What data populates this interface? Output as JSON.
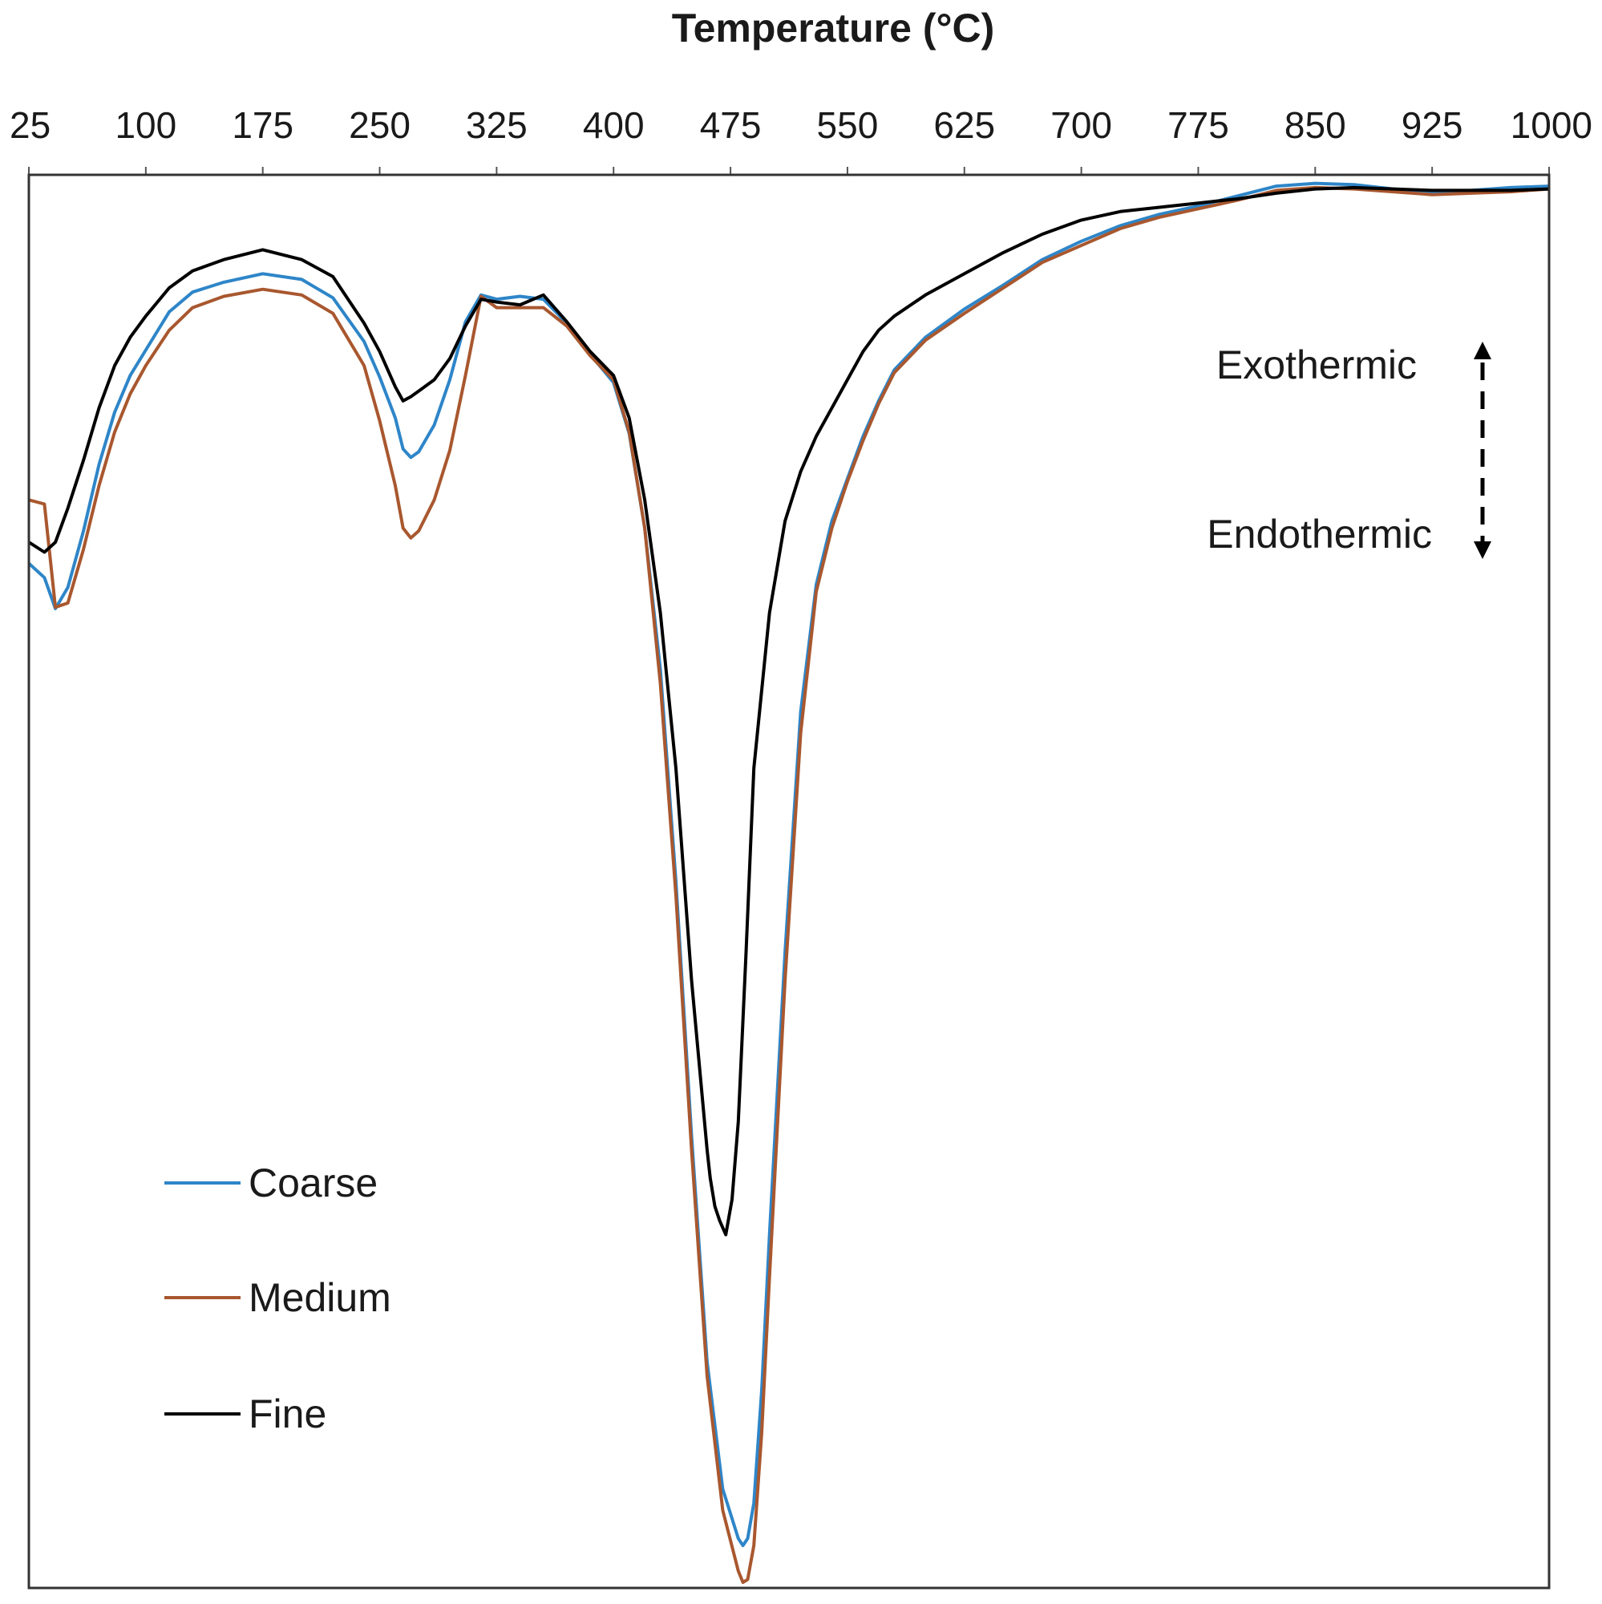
{
  "chart_data": {
    "type": "line",
    "title": "",
    "xlabel": "Temperature (°C)",
    "ylabel": "",
    "x_axis_position": "top",
    "xlim": [
      25,
      1000
    ],
    "ylim": [
      0,
      100
    ],
    "x_ticks": [
      "25",
      "100",
      "175",
      "250",
      "325",
      "400",
      "475",
      "550",
      "625",
      "700",
      "775",
      "850",
      "925",
      "1000"
    ],
    "grid": false,
    "legend": {
      "placement": "bottom-left",
      "entries": [
        "Coarse",
        "Medium",
        "Fine"
      ]
    },
    "annotations": {
      "up_label": "Exothermic",
      "down_label": "Endothermic"
    },
    "series": [
      {
        "name": "Coarse",
        "color": "#2e86c8",
        "x": [
          25,
          35,
          42,
          50,
          60,
          70,
          80,
          90,
          100,
          115,
          130,
          150,
          175,
          200,
          220,
          240,
          250,
          260,
          265,
          270,
          275,
          285,
          295,
          305,
          315,
          325,
          340,
          355,
          370,
          385,
          400,
          410,
          420,
          430,
          440,
          450,
          460,
          470,
          480,
          483,
          486,
          490,
          495,
          500,
          510,
          520,
          530,
          540,
          550,
          560,
          570,
          580,
          600,
          625,
          650,
          675,
          700,
          725,
          750,
          775,
          800,
          825,
          850,
          875,
          900,
          925,
          950,
          975,
          1000
        ],
        "y": [
          72.5,
          71.5,
          69.3,
          70.8,
          74.8,
          79.5,
          83.2,
          85.8,
          87.6,
          90.3,
          91.7,
          92.4,
          93.0,
          92.6,
          91.3,
          88.2,
          85.7,
          82.8,
          80.6,
          80.0,
          80.4,
          82.3,
          85.5,
          89.6,
          91.5,
          91.2,
          91.4,
          91.2,
          89.5,
          87.3,
          85.3,
          81.7,
          75.0,
          65.0,
          50.0,
          32.0,
          16.0,
          7.0,
          3.5,
          3.0,
          3.5,
          6.0,
          14.0,
          25.0,
          45.0,
          62.0,
          71.0,
          75.5,
          78.5,
          81.5,
          84.0,
          86.2,
          88.5,
          90.5,
          92.2,
          94.0,
          95.3,
          96.4,
          97.2,
          97.8,
          98.5,
          99.2,
          99.4,
          99.3,
          99.0,
          98.8,
          98.9,
          99.1,
          99.2
        ]
      },
      {
        "name": "Medium",
        "color": "#a9572e",
        "x": [
          25,
          35,
          42,
          50,
          60,
          70,
          80,
          90,
          100,
          115,
          130,
          150,
          175,
          200,
          220,
          240,
          250,
          260,
          265,
          270,
          275,
          285,
          295,
          305,
          315,
          325,
          340,
          355,
          370,
          385,
          400,
          410,
          420,
          430,
          440,
          450,
          460,
          470,
          480,
          483,
          486,
          490,
          495,
          500,
          510,
          520,
          530,
          540,
          550,
          560,
          570,
          580,
          600,
          625,
          650,
          675,
          700,
          725,
          750,
          775,
          800,
          825,
          850,
          875,
          900,
          925,
          950,
          975,
          1000
        ],
        "y": [
          77.0,
          76.7,
          69.4,
          69.7,
          73.5,
          78.0,
          81.8,
          84.5,
          86.5,
          89.0,
          90.6,
          91.4,
          91.9,
          91.5,
          90.2,
          86.5,
          82.6,
          78.0,
          75.0,
          74.3,
          74.8,
          77.0,
          80.5,
          85.8,
          91.4,
          90.6,
          90.6,
          90.6,
          89.3,
          87.2,
          85.5,
          81.8,
          75.0,
          64.0,
          49.0,
          31.0,
          15.0,
          5.5,
          1.2,
          0.4,
          0.6,
          3.0,
          11.0,
          22.0,
          43.0,
          60.5,
          70.5,
          75.0,
          78.3,
          81.2,
          83.8,
          86.0,
          88.3,
          90.2,
          92.0,
          93.8,
          95.0,
          96.2,
          97.0,
          97.6,
          98.2,
          98.9,
          99.1,
          99.0,
          98.8,
          98.6,
          98.7,
          98.8,
          99.0
        ]
      },
      {
        "name": "Fine",
        "color": "#000000",
        "x": [
          25,
          35,
          42,
          50,
          60,
          70,
          80,
          90,
          100,
          115,
          130,
          150,
          175,
          200,
          220,
          240,
          250,
          260,
          265,
          270,
          275,
          285,
          295,
          305,
          315,
          325,
          340,
          355,
          370,
          385,
          400,
          410,
          420,
          430,
          440,
          450,
          460,
          462,
          465,
          468,
          472,
          476,
          480,
          485,
          490,
          500,
          510,
          520,
          530,
          540,
          550,
          560,
          570,
          580,
          600,
          625,
          650,
          675,
          700,
          725,
          750,
          775,
          800,
          825,
          850,
          875,
          900,
          925,
          950,
          975,
          1000
        ],
        "y": [
          74.0,
          73.3,
          74.0,
          76.4,
          79.8,
          83.5,
          86.5,
          88.5,
          90.0,
          92.0,
          93.2,
          94.0,
          94.7,
          94.0,
          92.8,
          89.5,
          87.5,
          85.0,
          84.0,
          84.3,
          84.7,
          85.5,
          87.0,
          89.3,
          91.2,
          91.0,
          90.8,
          91.5,
          89.6,
          87.5,
          85.8,
          82.8,
          77.0,
          69.0,
          58.0,
          43.0,
          31.0,
          29.0,
          27.0,
          26.0,
          25.0,
          27.5,
          33.0,
          45.0,
          58.0,
          69.0,
          75.5,
          79.0,
          81.5,
          83.5,
          85.5,
          87.5,
          89.0,
          90.0,
          91.5,
          93.0,
          94.5,
          95.8,
          96.8,
          97.4,
          97.7,
          98.0,
          98.3,
          98.7,
          99.0,
          99.1,
          99.0,
          98.9,
          98.9,
          98.9,
          99.0
        ]
      }
    ]
  }
}
